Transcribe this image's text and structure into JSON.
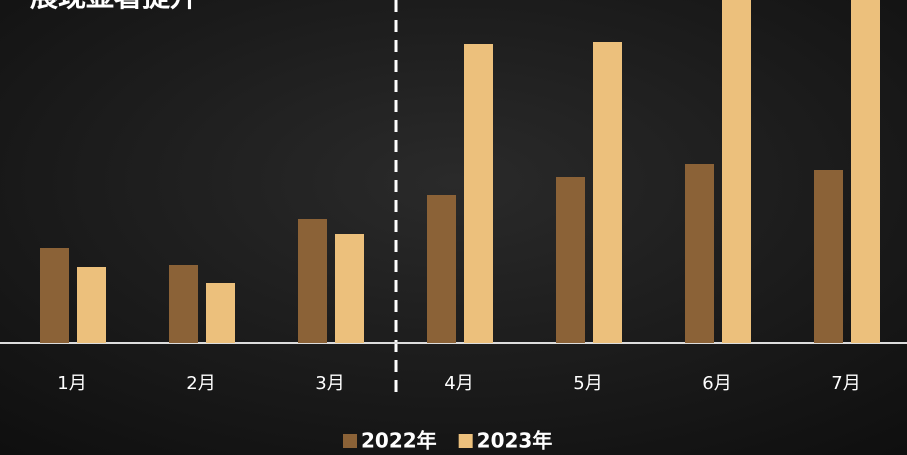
{
  "chart_data": {
    "type": "bar",
    "title": "展现显著提升",
    "categories": [
      "1月",
      "2月",
      "3月",
      "4月",
      "5月",
      "6月",
      "7月"
    ],
    "series": [
      {
        "name": "2022年",
        "color": "#8b6237",
        "values": [
          95,
          78,
          124,
          148,
          166,
          179,
          173
        ]
      },
      {
        "name": "2023年",
        "color": "#ecc07c",
        "values": [
          76,
          60,
          109,
          299,
          301,
          370,
          380
        ]
      }
    ]
  }
}
